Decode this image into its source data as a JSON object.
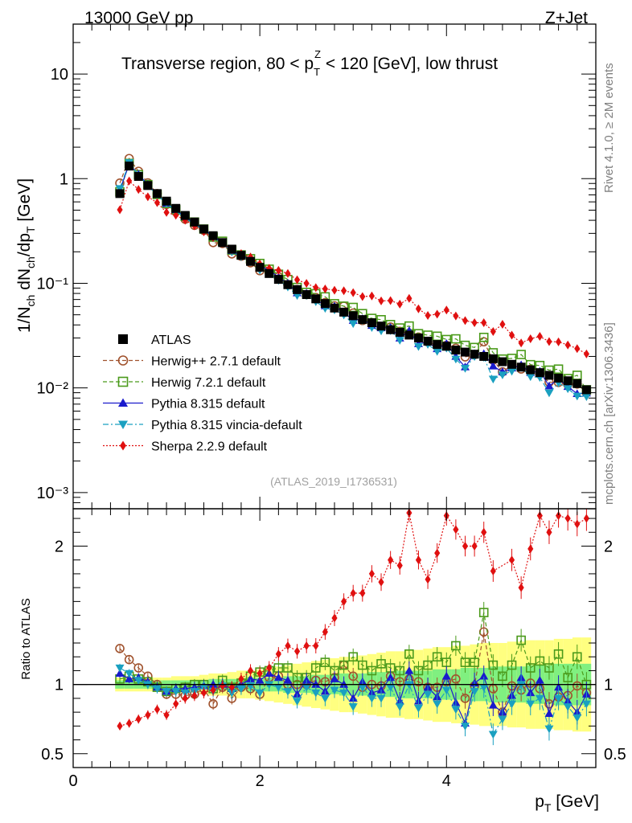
{
  "header": {
    "energy": "13000 GeV pp",
    "process": "Z+Jet",
    "title_pre": "Transverse region, 80 < p",
    "title_sup": "Z",
    "title_sub": "T",
    "title_post": " < 120 [GeV], low thrust",
    "analysis_id": "(ATLAS_2019_I1736531)",
    "side_rivet": "Rivet 4.1.0, ≥ 2M events",
    "side_mcplots": "mcplots.cern.ch [arXiv:1306.3436]"
  },
  "axes": {
    "ylabel_main": "1/N_ch dN_ch/dp_T [GeV]",
    "ylabel_ratio": "Ratio to ATLAS",
    "xlabel": "p_T [GeV]",
    "x_ticks": [
      "0",
      "2",
      "4"
    ],
    "main_y_ticks": [
      "10",
      "1",
      "10⁻¹",
      "10⁻²",
      "10⁻³"
    ],
    "ratio_y_ticks": [
      "2",
      "1",
      "0.5"
    ]
  },
  "legend": [
    {
      "label": "ATLAS",
      "color": "#000000",
      "marker": "square-filled",
      "line": "none"
    },
    {
      "label": "Herwig++ 2.7.1 default",
      "color": "#a0522d",
      "marker": "circle-open",
      "line": "dashed"
    },
    {
      "label": "Herwig 7.2.1 default",
      "color": "#4a9a1a",
      "marker": "square-open",
      "line": "dashed"
    },
    {
      "label": "Pythia 8.315 default",
      "color": "#1a1acc",
      "marker": "triangle-up",
      "line": "solid"
    },
    {
      "label": "Pythia 8.315 vincia-default",
      "color": "#1aa0c0",
      "marker": "triangle-down",
      "line": "dashdot"
    },
    {
      "label": "Sherpa 2.2.9 default",
      "color": "#e01010",
      "marker": "diamond",
      "line": "dotted"
    }
  ],
  "chart_data": {
    "type": "scatter",
    "title": "Transverse region, 80 < pT(Z) < 120 [GeV], low thrust",
    "xlabel": "pT [GeV]",
    "ylabel": "1/Nch dNch/dpT [GeV^-1]",
    "xlim": [
      0,
      5.6
    ],
    "ylim": [
      0.0007,
      30
    ],
    "yscale": "log",
    "ratio_ylim": [
      0.4,
      2.27
    ],
    "x": [
      0.5,
      0.6,
      0.7,
      0.8,
      0.9,
      1.0,
      1.1,
      1.2,
      1.3,
      1.4,
      1.5,
      1.6,
      1.7,
      1.8,
      1.9,
      2.0,
      2.1,
      2.2,
      2.3,
      2.4,
      2.5,
      2.6,
      2.7,
      2.8,
      2.9,
      3.0,
      3.1,
      3.2,
      3.3,
      3.4,
      3.5,
      3.6,
      3.7,
      3.8,
      3.9,
      4.0,
      4.1,
      4.2,
      4.3,
      4.4,
      4.5,
      4.6,
      4.7,
      4.8,
      4.9,
      5.0,
      5.1,
      5.2,
      5.3,
      5.4,
      5.5
    ],
    "atlas_values": [
      0.72,
      1.32,
      1.05,
      0.86,
      0.72,
      0.61,
      0.52,
      0.445,
      0.385,
      0.33,
      0.285,
      0.245,
      0.212,
      0.185,
      0.162,
      0.142,
      0.124,
      0.109,
      0.097,
      0.087,
      0.078,
      0.071,
      0.064,
      0.058,
      0.053,
      0.049,
      0.045,
      0.042,
      0.039,
      0.036,
      0.034,
      0.032,
      0.03,
      0.028,
      0.026,
      0.025,
      0.023,
      0.022,
      0.021,
      0.02,
      0.019,
      0.0178,
      0.0168,
      0.0158,
      0.0149,
      0.014,
      0.0132,
      0.0124,
      0.0117,
      0.011,
      0.0096
    ],
    "series": [
      {
        "name": "Herwig++ 2.7.1 default",
        "ratio": [
          1.26,
          1.18,
          1.12,
          1.06,
          1.0,
          0.93,
          0.93,
          0.92,
          0.93,
          0.97,
          0.86,
          0.98,
          0.9,
          0.98,
          0.97,
          0.93,
          1.05,
          1.06,
          1.0,
          1.0,
          1.0,
          1.03,
          1.02,
          1.05,
          1.14,
          1.06,
          0.98,
          1.0,
          0.99,
          1.06,
          1.02,
          1.04,
          1.02,
          0.98,
          0.98,
          1.02,
          1.04,
          0.9,
          0.99,
          1.38,
          0.97,
          0.8,
          0.99,
          0.96,
          1.01,
          0.97,
          0.86,
          0.91,
          0.92,
          0.99,
          0.94
        ]
      },
      {
        "name": "Herwig 7.2.1 default",
        "ratio": [
          1.04,
          1.06,
          1.04,
          1.02,
          0.98,
          0.95,
          0.97,
          0.98,
          1.0,
          1.0,
          0.97,
          1.03,
          0.98,
          1.01,
          1.06,
          1.09,
          1.1,
          1.12,
          1.12,
          1.05,
          1.05,
          1.12,
          1.16,
          1.1,
          1.14,
          1.2,
          1.14,
          1.1,
          1.15,
          1.12,
          1.1,
          1.22,
          1.1,
          1.14,
          1.2,
          1.16,
          1.28,
          1.16,
          1.16,
          1.52,
          1.14,
          1.06,
          1.14,
          1.32,
          1.12,
          1.17,
          1.12,
          1.22,
          1.05,
          1.2,
          1.0
        ]
      },
      {
        "name": "Pythia 8.315 default",
        "ratio": [
          1.08,
          1.04,
          1.05,
          1.02,
          0.98,
          0.95,
          0.97,
          0.97,
          0.98,
          0.99,
          1.0,
          1.0,
          0.97,
          1.0,
          1.04,
          1.03,
          1.08,
          1.05,
          1.03,
          0.93,
          1.03,
          1.0,
          0.95,
          1.04,
          1.0,
          0.9,
          1.02,
          0.94,
          0.96,
          1.05,
          0.88,
          1.1,
          0.88,
          0.98,
          0.91,
          1.06,
          0.87,
          0.72,
          1.01,
          1.06,
          0.85,
          0.8,
          0.92,
          1.05,
          0.94,
          1.03,
          0.79,
          0.98,
          0.88,
          0.8,
          0.93
        ]
      },
      {
        "name": "Pythia 8.315 vincia-default",
        "ratio": [
          1.12,
          1.08,
          1.03,
          1.0,
          0.97,
          0.95,
          0.95,
          0.94,
          0.95,
          0.98,
          0.95,
          0.99,
          0.94,
          0.97,
          0.99,
          0.94,
          1.0,
          0.98,
          0.95,
          0.88,
          0.98,
          0.94,
          0.9,
          0.96,
          0.94,
          0.84,
          0.98,
          0.9,
          0.9,
          0.98,
          0.84,
          1.0,
          0.83,
          0.93,
          0.86,
          0.96,
          0.82,
          0.7,
          0.95,
          0.98,
          0.64,
          0.75,
          0.86,
          1.0,
          0.86,
          0.9,
          0.68,
          0.9,
          0.84,
          0.76,
          0.86
        ]
      },
      {
        "name": "Sherpa 2.2.9 default",
        "ratio": [
          0.7,
          0.72,
          0.75,
          0.78,
          0.82,
          0.78,
          0.86,
          0.9,
          0.92,
          0.94,
          0.96,
          0.99,
          0.98,
          1.04,
          1.1,
          1.08,
          1.12,
          1.22,
          1.28,
          1.24,
          1.28,
          1.28,
          1.38,
          1.48,
          1.6,
          1.66,
          1.66,
          1.8,
          1.74,
          1.9,
          1.86,
          2.24,
          1.9,
          1.76,
          1.95,
          2.22,
          2.12,
          2.0,
          2.0,
          2.1,
          1.82,
          2.28,
          1.9,
          1.7,
          1.98,
          2.22,
          2.1,
          2.22,
          2.2,
          2.16,
          2.2
        ]
      }
    ],
    "uncertainty_band": {
      "inner": [
        0.03,
        0.03,
        0.03,
        0.03,
        0.03,
        0.03,
        0.03,
        0.03,
        0.03,
        0.03,
        0.04,
        0.04,
        0.04,
        0.04,
        0.05,
        0.05,
        0.05,
        0.05,
        0.06,
        0.06,
        0.06,
        0.07,
        0.07,
        0.07,
        0.08,
        0.08,
        0.08,
        0.09,
        0.09,
        0.09,
        0.1,
        0.1,
        0.1,
        0.1,
        0.11,
        0.11,
        0.11,
        0.12,
        0.12,
        0.12,
        0.13,
        0.13,
        0.13,
        0.13,
        0.14,
        0.14,
        0.14,
        0.15,
        0.15,
        0.15,
        0.15
      ],
      "outer": [
        0.05,
        0.05,
        0.05,
        0.05,
        0.05,
        0.05,
        0.06,
        0.06,
        0.06,
        0.07,
        0.08,
        0.08,
        0.09,
        0.1,
        0.1,
        0.11,
        0.12,
        0.13,
        0.14,
        0.15,
        0.16,
        0.17,
        0.18,
        0.19,
        0.2,
        0.2,
        0.21,
        0.22,
        0.23,
        0.24,
        0.24,
        0.25,
        0.25,
        0.26,
        0.27,
        0.27,
        0.28,
        0.28,
        0.29,
        0.3,
        0.3,
        0.3,
        0.31,
        0.31,
        0.32,
        0.32,
        0.32,
        0.33,
        0.33,
        0.34,
        0.34
      ]
    }
  }
}
